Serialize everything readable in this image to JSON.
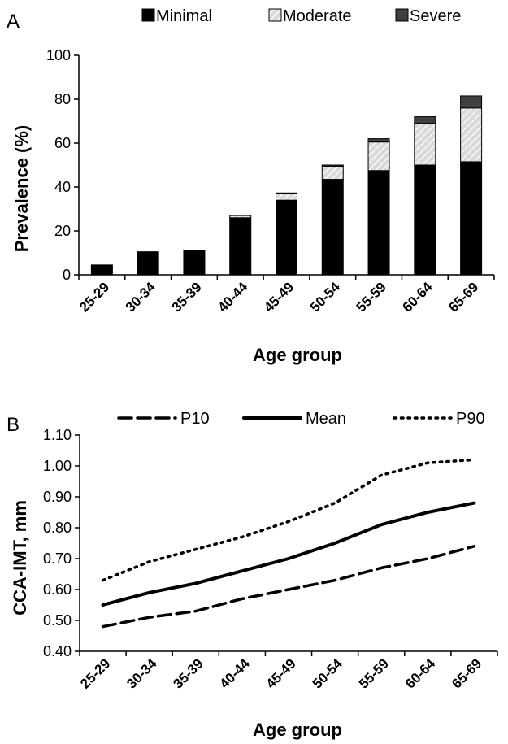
{
  "chart_data": [
    {
      "panel_label": "A",
      "type": "bar",
      "stacked": true,
      "categories": [
        "25-29",
        "30-34",
        "35-39",
        "40-44",
        "45-49",
        "50-54",
        "55-59",
        "60-64",
        "65-69"
      ],
      "series": [
        {
          "name": "Minimal",
          "values": [
            4.5,
            10.5,
            11,
            26,
            34,
            43.5,
            47.5,
            50,
            51.5
          ],
          "color": "#000000",
          "pattern": "solid"
        },
        {
          "name": "Moderate",
          "values": [
            0,
            0,
            0,
            1,
            3,
            6,
            13,
            19,
            24.5
          ],
          "color": "#d9d9d9",
          "pattern": "hatched"
        },
        {
          "name": "Severe",
          "values": [
            0,
            0,
            0,
            0,
            0.3,
            0.5,
            1.5,
            3,
            5.5
          ],
          "color": "#404040",
          "pattern": "solid"
        }
      ],
      "xlabel": "Age group",
      "ylabel": "Prevalence (%)",
      "ylim": [
        0,
        100
      ],
      "yticks": [
        "0",
        "20",
        "40",
        "60",
        "80",
        "100"
      ],
      "legend_position": "top"
    },
    {
      "panel_label": "B",
      "type": "line",
      "categories": [
        "25-29",
        "30-34",
        "35-39",
        "40-44",
        "45-49",
        "50-54",
        "55-59",
        "60-64",
        "65-69"
      ],
      "series": [
        {
          "name": "P10",
          "style": "dashed",
          "values": [
            0.48,
            0.51,
            0.53,
            0.57,
            0.6,
            0.63,
            0.67,
            0.7,
            0.74
          ]
        },
        {
          "name": "Mean",
          "style": "solid",
          "values": [
            0.55,
            0.59,
            0.62,
            0.66,
            0.7,
            0.75,
            0.81,
            0.85,
            0.88
          ]
        },
        {
          "name": "P90",
          "style": "dotted",
          "values": [
            0.63,
            0.69,
            0.73,
            0.77,
            0.82,
            0.88,
            0.97,
            1.01,
            1.02
          ]
        }
      ],
      "xlabel": "Age group",
      "ylabel": "CCA-IMT, mm",
      "ylim": [
        0.4,
        1.1
      ],
      "yticks": [
        "0.40",
        "0.50",
        "0.60",
        "0.70",
        "0.80",
        "0.90",
        "1.00",
        "1.10"
      ],
      "legend_position": "top"
    }
  ]
}
